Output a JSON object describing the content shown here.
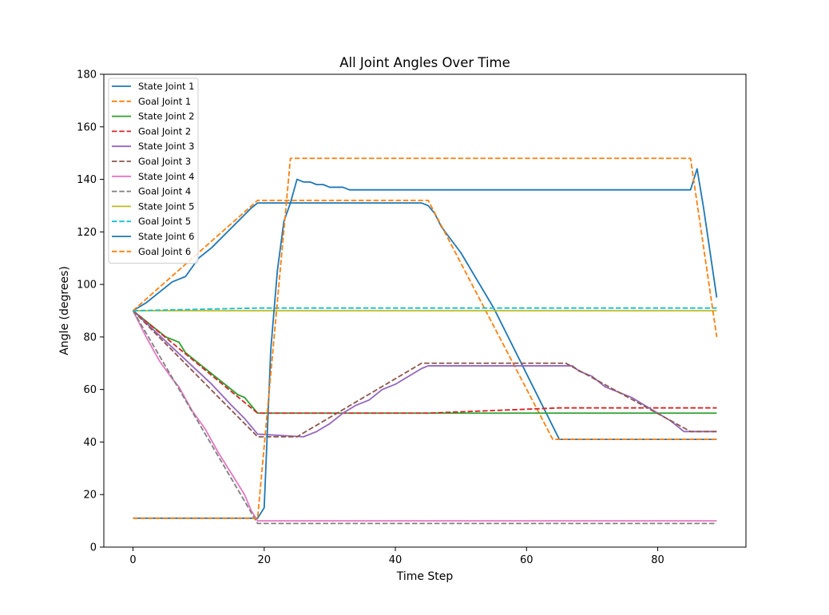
{
  "chart_data": {
    "type": "line",
    "title": "All Joint Angles Over Time",
    "xlabel": "Time Step",
    "ylabel": "Angle (degrees)",
    "xlim": [
      -4.45,
      93.45
    ],
    "ylim": [
      0,
      180
    ],
    "xticks": [
      0,
      20,
      40,
      60,
      80
    ],
    "yticks": [
      0,
      20,
      40,
      60,
      80,
      100,
      120,
      140,
      160,
      180
    ],
    "grid": false,
    "legend_position": "upper-left",
    "series": [
      {
        "name": "State Joint 1",
        "color": "#1f77b4",
        "dash": "solid",
        "points": [
          [
            0,
            90
          ],
          [
            2,
            93
          ],
          [
            4,
            97
          ],
          [
            6,
            101
          ],
          [
            7,
            102
          ],
          [
            8,
            103
          ],
          [
            10,
            110
          ],
          [
            12,
            114
          ],
          [
            14,
            119
          ],
          [
            16,
            124
          ],
          [
            18,
            129
          ],
          [
            19,
            131
          ],
          [
            25,
            131
          ],
          [
            44,
            131
          ],
          [
            45,
            130
          ],
          [
            46,
            127
          ],
          [
            47,
            122
          ],
          [
            50,
            112
          ],
          [
            55,
            91
          ],
          [
            60,
            66
          ],
          [
            62,
            56
          ],
          [
            64,
            46
          ],
          [
            65,
            41
          ],
          [
            89,
            41
          ]
        ]
      },
      {
        "name": "Goal Joint 1",
        "color": "#ff7f0e",
        "dash": "dashed",
        "points": [
          [
            0,
            90
          ],
          [
            19,
            132
          ],
          [
            45,
            132
          ],
          [
            64,
            41
          ],
          [
            89,
            41
          ]
        ]
      },
      {
        "name": "State Joint 2",
        "color": "#2ca02c",
        "dash": "solid",
        "points": [
          [
            0,
            90
          ],
          [
            2,
            86
          ],
          [
            4,
            82
          ],
          [
            5,
            80
          ],
          [
            7,
            78
          ],
          [
            8,
            74
          ],
          [
            10,
            70
          ],
          [
            12,
            66
          ],
          [
            14,
            62
          ],
          [
            16,
            58
          ],
          [
            17,
            57
          ],
          [
            18,
            54
          ],
          [
            19,
            51
          ],
          [
            89,
            51
          ]
        ]
      },
      {
        "name": "Goal Joint 2",
        "color": "#d62728",
        "dash": "dashed",
        "points": [
          [
            0,
            90
          ],
          [
            19,
            51
          ],
          [
            45,
            51
          ],
          [
            55,
            52
          ],
          [
            65,
            53
          ],
          [
            89,
            53
          ]
        ]
      },
      {
        "name": "State Joint 3",
        "color": "#9467bd",
        "dash": "solid",
        "points": [
          [
            0,
            90
          ],
          [
            3,
            83
          ],
          [
            6,
            76
          ],
          [
            9,
            69
          ],
          [
            12,
            62
          ],
          [
            15,
            54
          ],
          [
            17,
            49
          ],
          [
            19,
            43
          ],
          [
            26,
            42
          ],
          [
            28,
            44
          ],
          [
            30,
            47
          ],
          [
            32,
            51
          ],
          [
            34,
            54
          ],
          [
            36,
            56
          ],
          [
            38,
            60
          ],
          [
            40,
            62
          ],
          [
            42,
            65
          ],
          [
            44,
            68
          ],
          [
            45,
            69
          ],
          [
            67,
            69
          ],
          [
            68,
            67
          ],
          [
            70,
            65
          ],
          [
            72,
            61
          ],
          [
            74,
            59
          ],
          [
            76,
            57
          ],
          [
            78,
            54
          ],
          [
            80,
            51
          ],
          [
            82,
            48
          ],
          [
            84,
            44
          ],
          [
            89,
            44
          ]
        ]
      },
      {
        "name": "Goal Joint 3",
        "color": "#8c564b",
        "dash": "dashed",
        "points": [
          [
            0,
            90
          ],
          [
            19,
            42
          ],
          [
            25,
            42
          ],
          [
            44,
            70
          ],
          [
            66,
            70
          ],
          [
            85,
            44
          ],
          [
            89,
            44
          ]
        ]
      },
      {
        "name": "State Joint 4",
        "color": "#e377c2",
        "dash": "solid",
        "points": [
          [
            0,
            90
          ],
          [
            2,
            80
          ],
          [
            4,
            71
          ],
          [
            6,
            64
          ],
          [
            7,
            61
          ],
          [
            9,
            52
          ],
          [
            11,
            45
          ],
          [
            13,
            36
          ],
          [
            15,
            28
          ],
          [
            17,
            20
          ],
          [
            18,
            14
          ],
          [
            19,
            10
          ],
          [
            89,
            10
          ]
        ]
      },
      {
        "name": "Goal Joint 4",
        "color": "#7f7f7f",
        "dash": "dashed",
        "points": [
          [
            0,
            90
          ],
          [
            19,
            9
          ],
          [
            89,
            9
          ]
        ]
      },
      {
        "name": "State Joint 5",
        "color": "#bcbd22",
        "dash": "solid",
        "points": [
          [
            0,
            90
          ],
          [
            89,
            90
          ]
        ]
      },
      {
        "name": "Goal Joint 5",
        "color": "#17becf",
        "dash": "dashed",
        "points": [
          [
            0,
            90
          ],
          [
            19,
            91
          ],
          [
            89,
            91
          ]
        ]
      },
      {
        "name": "State Joint 6",
        "color": "#1f77b4",
        "dash": "solid",
        "points": [
          [
            0,
            11
          ],
          [
            19,
            11
          ],
          [
            20,
            15
          ],
          [
            21,
            75
          ],
          [
            22,
            105
          ],
          [
            23,
            124
          ],
          [
            24,
            131
          ],
          [
            25,
            140
          ],
          [
            26,
            139
          ],
          [
            27,
            139
          ],
          [
            28,
            138
          ],
          [
            29,
            138
          ],
          [
            30,
            137
          ],
          [
            31,
            137
          ],
          [
            32,
            137
          ],
          [
            33,
            136
          ],
          [
            85,
            136
          ],
          [
            86,
            144
          ],
          [
            87,
            129
          ],
          [
            89,
            95
          ]
        ]
      },
      {
        "name": "Goal Joint 6",
        "color": "#ff7f0e",
        "dash": "dashed",
        "points": [
          [
            0,
            11
          ],
          [
            19,
            11
          ],
          [
            24,
            148
          ],
          [
            85,
            148
          ],
          [
            89,
            80
          ]
        ]
      }
    ]
  }
}
